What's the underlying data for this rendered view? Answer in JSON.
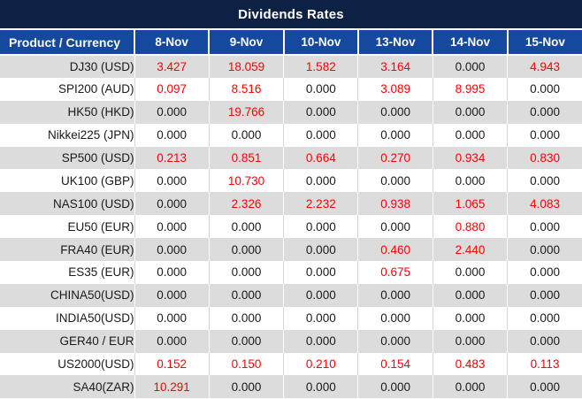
{
  "colors": {
    "title_bg": "#0d2145",
    "header_bg": "#14499d",
    "header_text": "#ffffff",
    "row_alt_bg": "#dcdcdc",
    "row_bg": "#ffffff",
    "value_nonzero": "#ff0000",
    "value_zero": "#1a1a1a",
    "product_text": "#1a1a1a"
  },
  "chart_data": {
    "type": "table",
    "title": "Dividends Rates",
    "columns": [
      "Product / Currency",
      "8-Nov",
      "9-Nov",
      "10-Nov",
      "13-Nov",
      "14-Nov",
      "15-Nov"
    ],
    "rows": [
      [
        "DJ30 (USD)",
        "3.427",
        "18.059",
        "1.582",
        "3.164",
        "0.000",
        "4.943"
      ],
      [
        "SPI200 (AUD)",
        "0.097",
        "8.516",
        "0.000",
        "3.089",
        "8.995",
        "0.000"
      ],
      [
        "HK50 (HKD)",
        "0.000",
        "19.766",
        "0.000",
        "0.000",
        "0.000",
        "0.000"
      ],
      [
        "Nikkei225 (JPN)",
        "0.000",
        "0.000",
        "0.000",
        "0.000",
        "0.000",
        "0.000"
      ],
      [
        "SP500 (USD)",
        "0.213",
        "0.851",
        "0.664",
        "0.270",
        "0.934",
        "0.830"
      ],
      [
        "UK100 (GBP)",
        "0.000",
        "10.730",
        "0.000",
        "0.000",
        "0.000",
        "0.000"
      ],
      [
        "NAS100 (USD)",
        "0.000",
        "2.326",
        "2.232",
        "0.938",
        "1.065",
        "4.083"
      ],
      [
        "EU50 (EUR)",
        "0.000",
        "0.000",
        "0.000",
        "0.000",
        "0.880",
        "0.000"
      ],
      [
        "FRA40 (EUR)",
        "0.000",
        "0.000",
        "0.000",
        "0.460",
        "2.440",
        "0.000"
      ],
      [
        "ES35 (EUR)",
        "0.000",
        "0.000",
        "0.000",
        "0.675",
        "0.000",
        "0.000"
      ],
      [
        "CHINA50(USD)",
        "0.000",
        "0.000",
        "0.000",
        "0.000",
        "0.000",
        "0.000"
      ],
      [
        "INDIA50(USD)",
        "0.000",
        "0.000",
        "0.000",
        "0.000",
        "0.000",
        "0.000"
      ],
      [
        "GER40 / EUR",
        "0.000",
        "0.000",
        "0.000",
        "0.000",
        "0.000",
        "0.000"
      ],
      [
        "US2000(USD)",
        "0.152",
        "0.150",
        "0.210",
        "0.154",
        "0.483",
        "0.113"
      ],
      [
        "SA40(ZAR)",
        "10.291",
        "0.000",
        "0.000",
        "0.000",
        "0.000",
        "0.000"
      ]
    ],
    "value_style_rule": "non-zero values rendered red, zero values rendered black",
    "layout": {
      "striped": true,
      "first_row_shade": "gray",
      "value_alignment": "center",
      "product_alignment": "right"
    }
  }
}
